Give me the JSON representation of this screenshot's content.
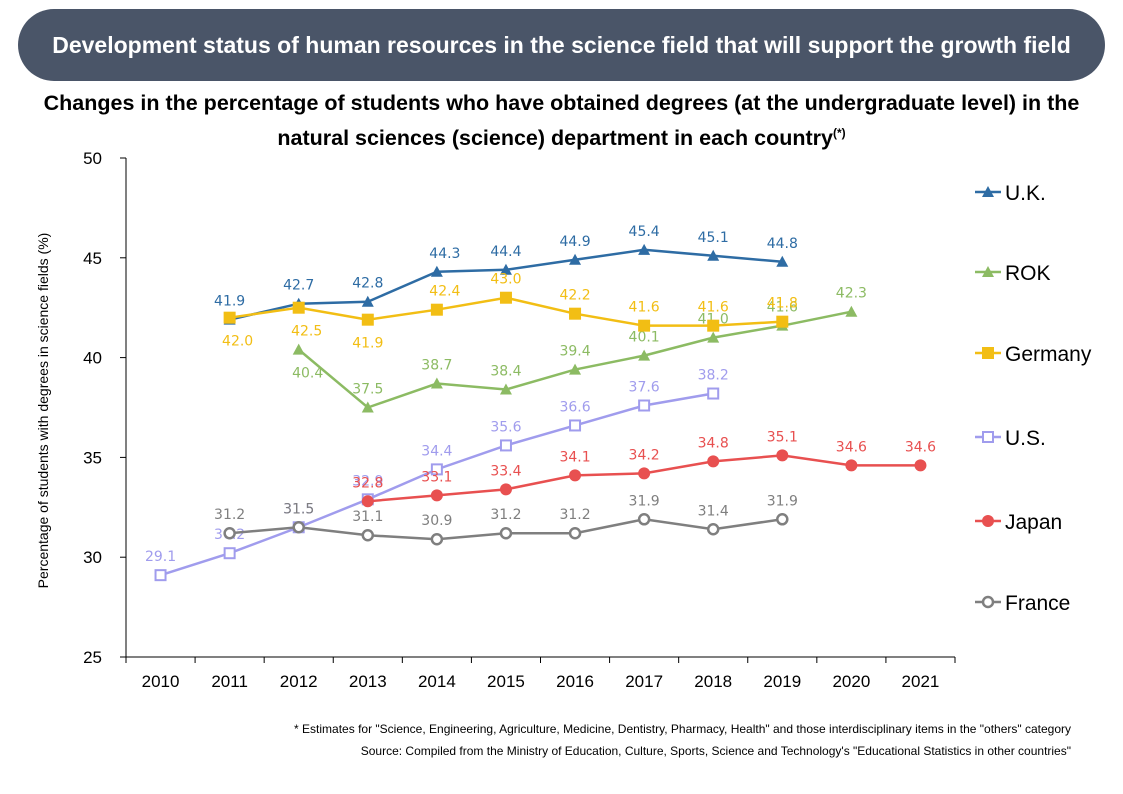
{
  "banner": {
    "title": "Development status of human resources in the science field that will support the growth field"
  },
  "chart_data": {
    "type": "line",
    "title": "Changes in the percentage of students who have obtained degrees (at the undergraduate level) in the natural sciences (science) department in each country",
    "title_superscript": "(*)",
    "ylabel": "Percentage of students with degrees in science fields (%)",
    "xlabel": "",
    "categories": [
      "2010",
      "2011",
      "2012",
      "2013",
      "2014",
      "2015",
      "2016",
      "2017",
      "2018",
      "2019",
      "2020",
      "2021"
    ],
    "ylim": [
      25,
      50
    ],
    "yticks": [
      25,
      30,
      35,
      40,
      45,
      50
    ],
    "grid": false,
    "legend_position": "right",
    "series": [
      {
        "name": "U.K.",
        "color": "#2e6ca4",
        "marker": "triangle",
        "x": [
          2011,
          2012,
          2013,
          2014,
          2015,
          2016,
          2017,
          2018,
          2019
        ],
        "values": [
          41.9,
          42.7,
          42.8,
          44.3,
          44.4,
          44.9,
          45.4,
          45.1,
          44.8
        ],
        "labels": [
          "41.9",
          "42.7",
          "42.8",
          "44.3",
          "44.4",
          "44.9",
          "45.4",
          "45.1",
          "44.8"
        ]
      },
      {
        "name": "ROK",
        "color": "#8cbb63",
        "marker": "triangle",
        "x": [
          2012,
          2013,
          2014,
          2015,
          2016,
          2017,
          2018,
          2019,
          2020
        ],
        "values": [
          40.4,
          37.5,
          38.7,
          38.4,
          39.4,
          40.1,
          41.0,
          41.6,
          42.3
        ],
        "labels": [
          "40.4",
          "37.5",
          "38.7",
          "38.4",
          "39.4",
          "40.1",
          "41.0",
          "41.6",
          "42.3"
        ]
      },
      {
        "name": "Germany",
        "color": "#f2be14",
        "marker": "square",
        "x": [
          2011,
          2012,
          2013,
          2014,
          2015,
          2016,
          2017,
          2018,
          2019
        ],
        "values": [
          42.0,
          42.5,
          41.9,
          42.4,
          43.0,
          42.2,
          41.6,
          41.6,
          41.8
        ],
        "labels": [
          "42.0",
          "42.5",
          "41.9",
          "42.4",
          "43.0",
          "42.2",
          "41.6",
          "41.6",
          "41.8"
        ]
      },
      {
        "name": "U.S.",
        "color": "#a09ced",
        "marker": "open-square",
        "x": [
          2010,
          2011,
          2012,
          2013,
          2014,
          2015,
          2016,
          2017,
          2018
        ],
        "values": [
          29.1,
          30.2,
          31.5,
          32.9,
          34.4,
          35.6,
          36.6,
          37.6,
          38.2
        ],
        "labels": [
          "29.1",
          "30.2",
          "31.5",
          "32.9",
          "34.4",
          "35.6",
          "36.6",
          "37.6",
          "38.2"
        ]
      },
      {
        "name": "Japan",
        "color": "#e85050",
        "marker": "circle",
        "x": [
          2013,
          2014,
          2015,
          2016,
          2017,
          2018,
          2019,
          2020,
          2021
        ],
        "values": [
          32.8,
          33.1,
          33.4,
          34.1,
          34.2,
          34.8,
          35.1,
          34.6,
          34.6
        ],
        "labels": [
          "32.8",
          "33.1",
          "33.4",
          "34.1",
          "34.2",
          "34.8",
          "35.1",
          "34.6",
          "34.6"
        ]
      },
      {
        "name": "France",
        "color": "#7f7f7f",
        "marker": "open-circle",
        "x": [
          2011,
          2012,
          2013,
          2014,
          2015,
          2016,
          2017,
          2018,
          2019
        ],
        "values": [
          31.2,
          31.5,
          31.1,
          30.9,
          31.2,
          31.2,
          31.9,
          31.4,
          31.9
        ],
        "labels": [
          "31.2",
          "31.5",
          "31.1",
          "30.9",
          "31.2",
          "31.2",
          "31.9",
          "31.4",
          "31.9"
        ]
      }
    ]
  },
  "footnotes": {
    "note": "* Estimates for \"Science, Engineering, Agriculture, Medicine, Dentistry, Pharmacy, Health\" and those interdisciplinary items in the \"others\" category",
    "source": "Source: Compiled from the Ministry of Education, Culture, Sports, Science and Technology's \"Educational Statistics in other countries\""
  }
}
